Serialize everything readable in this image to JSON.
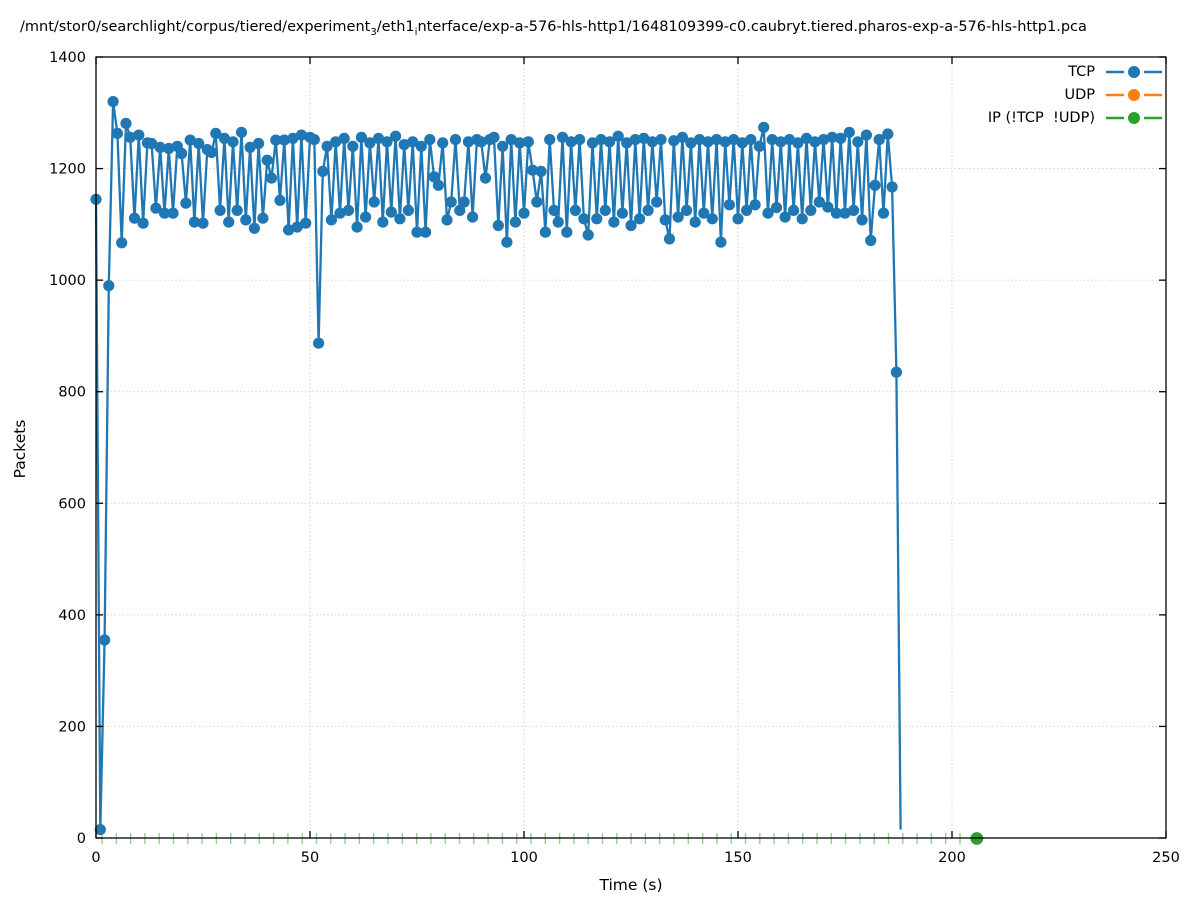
{
  "title": {
    "part1": "/mnt/stor0/searchlight/corpus/tiered/experiment",
    "sub1": "3",
    "part2": "/eth1",
    "sub2": "i",
    "part3": "nterface/exp-a-576-hls-http1/1648109399-c0.caubryt.tiered.pharos-exp-a-576-hls-http1.pca"
  },
  "axes": {
    "x_label": "Time (s)",
    "y_label": "Packets"
  },
  "legend": [
    {
      "label": "TCP",
      "color": "#1f77b4"
    },
    {
      "label": "UDP",
      "color": "#ff7f0e"
    },
    {
      "label": "IP (!TCP  !UDP)",
      "color": "#2ca02c"
    }
  ],
  "colors": {
    "tcp": "#1f77b4",
    "udp": "#ff7f0e",
    "ip_other": "#2ca02c",
    "grid": "#c8c8c8",
    "axis": "#000000"
  },
  "chart_data": {
    "type": "line",
    "title": "/mnt/stor0/searchlight/corpus/tiered/experiment₃/eth1ᵢnterface/exp-a-576-hls-http1/1648109399-c0.caubryt.tiered.pharos-exp-a-576-hls-http1.pca",
    "xlabel": "Time (s)",
    "ylabel": "Packets",
    "xlim": [
      0,
      250
    ],
    "ylim": [
      0,
      1400
    ],
    "x_ticks": [
      0,
      50,
      100,
      150,
      200,
      250
    ],
    "y_ticks": [
      0,
      200,
      400,
      600,
      800,
      1000,
      1200,
      1400
    ],
    "grid": "dotted",
    "legend_position": "upper right",
    "series": [
      {
        "name": "TCP",
        "color": "#1f77b4",
        "marker": "circle",
        "x_start": 0,
        "x_step": 1,
        "final_point_marker": false,
        "values": [
          1145,
          15,
          355,
          990,
          1320,
          1263,
          1067,
          1281,
          1256,
          1111,
          1260,
          1102,
          1246,
          1245,
          1129,
          1238,
          1120,
          1236,
          1120,
          1240,
          1227,
          1138,
          1251,
          1104,
          1245,
          1102,
          1234,
          1229,
          1263,
          1125,
          1254,
          1104,
          1248,
          1125,
          1265,
          1108,
          1238,
          1093,
          1245,
          1111,
          1215,
          1183,
          1251,
          1143,
          1251,
          1090,
          1254,
          1095,
          1260,
          1102,
          1256,
          1252,
          887,
          1195,
          1240,
          1108,
          1248,
          1120,
          1254,
          1125,
          1240,
          1095,
          1256,
          1113,
          1246,
          1140,
          1254,
          1104,
          1248,
          1122,
          1258,
          1110,
          1243,
          1125,
          1248,
          1086,
          1240,
          1086,
          1252,
          1185,
          1170,
          1246,
          1108,
          1140,
          1252,
          1125,
          1140,
          1248,
          1113,
          1252,
          1248,
          1183,
          1252,
          1256,
          1098,
          1240,
          1068,
          1252,
          1104,
          1246,
          1120,
          1248,
          1197,
          1140,
          1195,
          1086,
          1252,
          1125,
          1104,
          1256,
          1086,
          1248,
          1125,
          1252,
          1110,
          1081,
          1246,
          1110,
          1252,
          1125,
          1248,
          1104,
          1258,
          1120,
          1246,
          1098,
          1252,
          1110,
          1254,
          1125,
          1248,
          1140,
          1252,
          1108,
          1074,
          1250,
          1113,
          1256,
          1125,
          1246,
          1104,
          1252,
          1120,
          1248,
          1110,
          1252,
          1068,
          1248,
          1135,
          1252,
          1110,
          1246,
          1125,
          1252,
          1135,
          1240,
          1274,
          1120,
          1252,
          1130,
          1248,
          1113,
          1252,
          1125,
          1246,
          1110,
          1254,
          1125,
          1248,
          1140,
          1252,
          1131,
          1256,
          1120,
          1254,
          1120,
          1265,
          1125,
          1248,
          1108,
          1260,
          1071,
          1170,
          1252,
          1120,
          1262,
          1167,
          835,
          15
        ]
      },
      {
        "name": "UDP",
        "color": "#ff7f0e",
        "marker": "circle",
        "values": []
      },
      {
        "name": "IP (!TCP  !UDP)",
        "color": "#2ca02c",
        "style": "dashed",
        "marker": "circle",
        "y_value": 0,
        "x_start": 0,
        "x_end": 205.8,
        "end_marker": true
      }
    ]
  }
}
